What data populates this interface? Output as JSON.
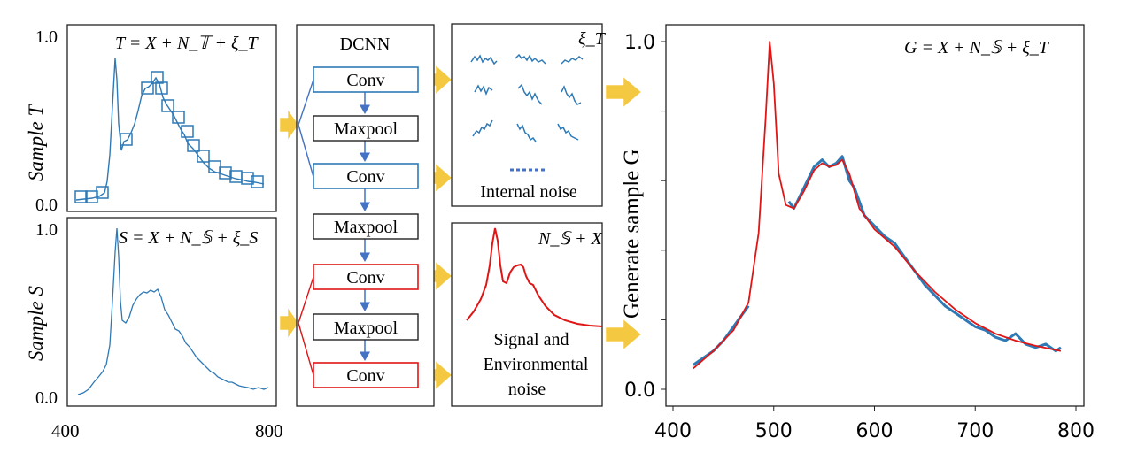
{
  "panel_t": {
    "equation": "T = X + N_𝕋 + ξ_T",
    "ylabel": "Sample T",
    "yticks": [
      "1.0",
      "0.0"
    ]
  },
  "panel_s": {
    "equation": "S = X + N_𝕊 + ξ_S",
    "ylabel": "Sample S",
    "yticks": [
      "1.0",
      "0.0"
    ],
    "xticks": [
      "400",
      "800"
    ]
  },
  "dcnn": {
    "title": "DCNN",
    "layers": [
      {
        "label": "Conv",
        "color": "#2f79b5"
      },
      {
        "label": "Maxpool",
        "color": "#222222"
      },
      {
        "label": "Conv",
        "color": "#2f79b5"
      },
      {
        "label": "Maxpool",
        "color": "#222222"
      },
      {
        "label": "Conv",
        "color": "#e01515"
      },
      {
        "label": "Maxpool",
        "color": "#222222"
      },
      {
        "label": "Conv",
        "color": "#e01515"
      }
    ]
  },
  "internal_box": {
    "symbol": "ξ_T",
    "label": "Internal noise"
  },
  "signal_box": {
    "symbol": "N_𝕊 + X",
    "label_lines": [
      "Signal and",
      "Environmental",
      "noise"
    ]
  },
  "chart_data": {
    "type": "line",
    "title": "",
    "equation": "G = X + N_𝕊 + ξ_T",
    "ylabel": "Generate sample G",
    "xlabel": "",
    "xlim": [
      400,
      800
    ],
    "ylim": [
      0.0,
      1.0
    ],
    "xticks": [
      "400",
      "500",
      "600",
      "700",
      "800"
    ],
    "yticks": [
      "1.0",
      "0.0"
    ],
    "series": [
      {
        "color": "#e01515",
        "x": [
          420,
          440,
          460,
          475,
          485,
          492,
          496,
          500,
          505,
          512,
          520,
          530,
          540,
          548,
          555,
          562,
          568,
          575,
          585,
          600,
          620,
          640,
          660,
          680,
          700,
          720,
          740,
          760,
          785
        ],
        "y": [
          0.06,
          0.11,
          0.17,
          0.25,
          0.45,
          0.78,
          1.0,
          0.88,
          0.62,
          0.53,
          0.52,
          0.57,
          0.63,
          0.65,
          0.64,
          0.645,
          0.66,
          0.62,
          0.52,
          0.46,
          0.41,
          0.34,
          0.28,
          0.23,
          0.19,
          0.16,
          0.14,
          0.125,
          0.11
        ]
      },
      {
        "color": "#2f79b5",
        "x": [
          420,
          430,
          440,
          450,
          460,
          470,
          475,
          515,
          520,
          530,
          540,
          548,
          555,
          562,
          568,
          575,
          580,
          590,
          600,
          610,
          620,
          630,
          640,
          650,
          660,
          670,
          680,
          690,
          700,
          710,
          720,
          730,
          740,
          750,
          760,
          770,
          780,
          785
        ],
        "y": [
          0.07,
          0.09,
          0.11,
          0.14,
          0.18,
          0.22,
          0.24,
          0.54,
          0.52,
          0.58,
          0.64,
          0.66,
          0.64,
          0.65,
          0.67,
          0.6,
          0.58,
          0.5,
          0.47,
          0.44,
          0.42,
          0.38,
          0.34,
          0.3,
          0.27,
          0.24,
          0.22,
          0.2,
          0.18,
          0.17,
          0.15,
          0.14,
          0.16,
          0.13,
          0.12,
          0.13,
          0.11,
          0.12
        ]
      }
    ]
  }
}
